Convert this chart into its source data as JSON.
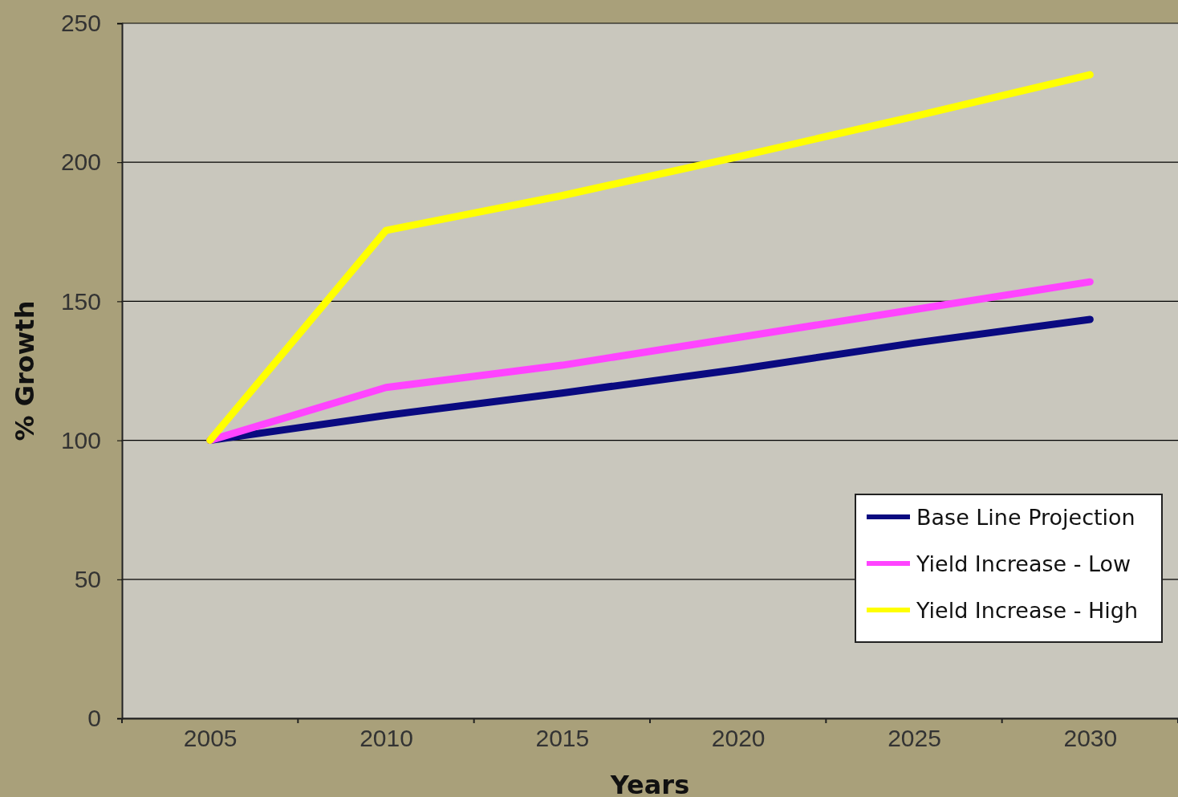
{
  "chart_data": {
    "type": "line",
    "xlabel": "Years",
    "ylabel": "% Growth",
    "categories": [
      "2005",
      "2010",
      "2015",
      "2020",
      "2025",
      "2030"
    ],
    "series": [
      {
        "name": "Base Line Projection",
        "color": "#0a0a80",
        "values": [
          100,
          109,
          117,
          125.5,
          135,
          143.5
        ]
      },
      {
        "name": "Yield Increase - Low",
        "color": "#ff44ff",
        "values": [
          100,
          119,
          127,
          137,
          147,
          157
        ]
      },
      {
        "name": "Yield Increase - High",
        "color": "#ffff00",
        "values": [
          100,
          175.5,
          188,
          202,
          216.5,
          231.5
        ]
      }
    ],
    "ylim": [
      0,
      250
    ],
    "yticks": [
      0,
      50,
      100,
      150,
      200,
      250
    ],
    "grid": "y",
    "legend": "bottom right",
    "marker": "none",
    "line_style": "solid"
  }
}
